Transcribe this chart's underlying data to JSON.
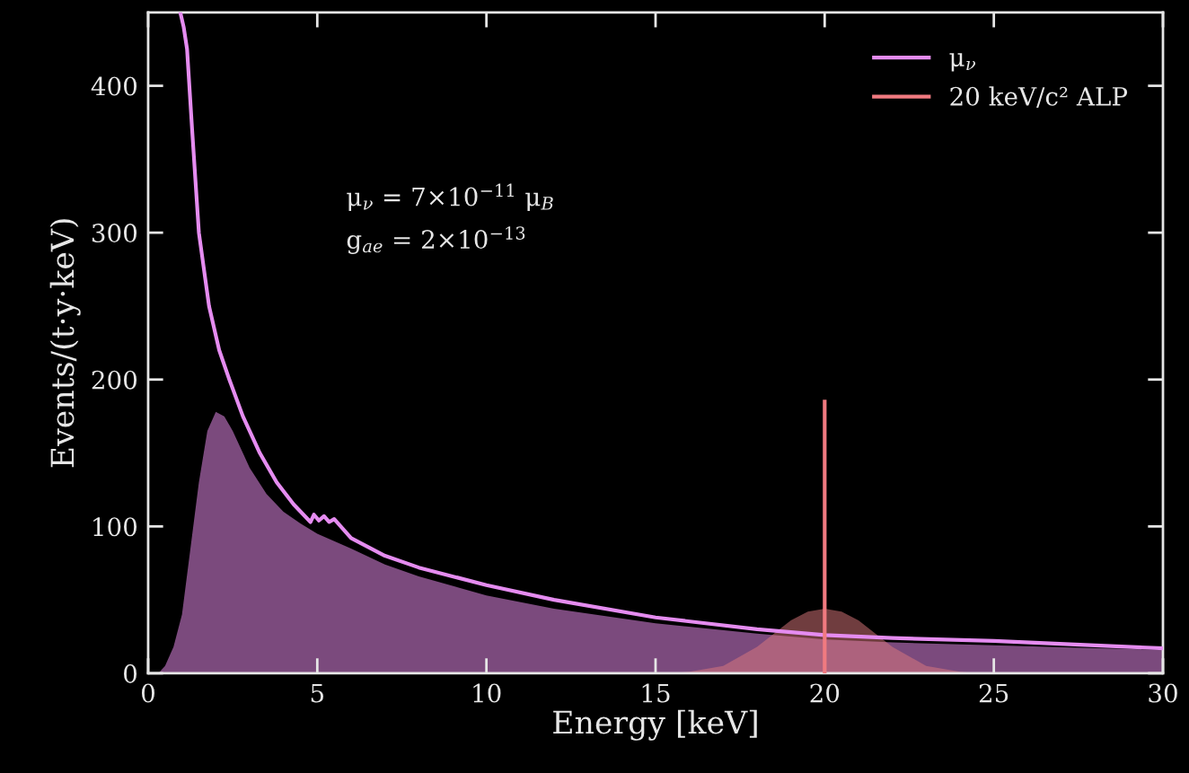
{
  "chart_data": {
    "type": "line",
    "xlabel": "Energy [keV]",
    "ylabel": "Events/(t·y·keV)",
    "xlim": [
      0,
      30
    ],
    "ylim": [
      0,
      450
    ],
    "xticks": [
      0,
      5,
      10,
      15,
      20,
      25,
      30
    ],
    "yticks": [
      0,
      100,
      200,
      300,
      400
    ],
    "grid": false,
    "legend": "top right",
    "annotations": [
      "μ$_{ν}$ = 7×10$^{−11}$ μ$_{B}$",
      "g$_{ae}$ = 2×10$^{−13}$"
    ],
    "series": [
      {
        "type": "area",
        "color": "#7b4a7d",
        "x": [
          0.3,
          0.5,
          0.75,
          1,
          1.25,
          1.5,
          1.75,
          2,
          2.25,
          2.5,
          3,
          3.5,
          4,
          4.5,
          5,
          6,
          7,
          8,
          10,
          12,
          15,
          18,
          20,
          22,
          25,
          28,
          30
        ],
        "values": [
          0,
          5,
          18,
          40,
          85,
          130,
          165,
          178,
          175,
          165,
          140,
          122,
          110,
          102,
          95,
          85,
          74,
          66,
          53,
          44,
          34,
          27,
          23,
          21,
          19,
          17,
          16
        ]
      },
      {
        "type": "area",
        "color": "#e07a7e",
        "x": [
          15.5,
          16,
          17,
          18,
          18.5,
          19,
          19.5,
          20,
          20.5,
          21,
          21.5,
          22,
          23,
          24,
          24.5
        ],
        "values": [
          0,
          1,
          5,
          18,
          27,
          36,
          42,
          44,
          42,
          36,
          27,
          18,
          5,
          1,
          0
        ]
      },
      {
        "name": "μ$_{ν}$",
        "color": "#e58cf0",
        "x": [
          0.95,
          1.05,
          1.15,
          1.3,
          1.5,
          1.8,
          2.1,
          2.4,
          2.8,
          3.3,
          3.8,
          4.3,
          4.8,
          4.9,
          5.05,
          5.2,
          5.35,
          5.5,
          6,
          7,
          8,
          10,
          12,
          15,
          18,
          20,
          22,
          25,
          28,
          30
        ],
        "values": [
          450,
          440,
          425,
          370,
          300,
          250,
          220,
          200,
          175,
          150,
          130,
          115,
          103,
          108,
          104,
          107,
          103,
          105,
          92,
          80,
          72,
          60,
          50,
          38,
          30,
          26,
          24,
          22,
          19,
          17
        ]
      },
      {
        "name": "20 keV/c² ALP",
        "type": "line",
        "color": "#f07a80",
        "x": [
          20,
          20
        ],
        "values": [
          0,
          185
        ]
      }
    ]
  }
}
